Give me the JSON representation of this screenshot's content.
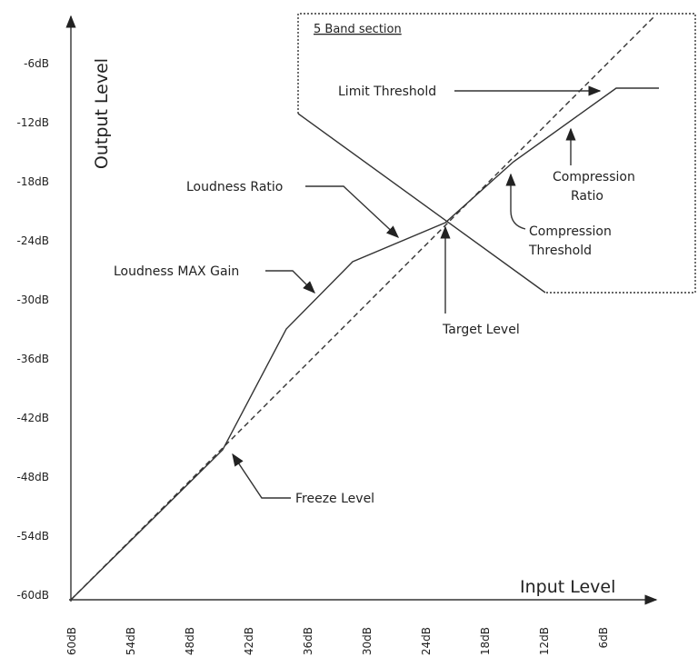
{
  "axes": {
    "y_label": "Output Level",
    "x_label": "Input Level",
    "y_ticks": [
      "-6dB",
      "-12dB",
      "-18dB",
      "-24dB",
      "-30dB",
      "-36dB",
      "-42dB",
      "-48dB",
      "-54dB",
      "-60dB"
    ],
    "x_ticks": [
      "60dB",
      "54dB",
      "48dB",
      "42dB",
      "36dB",
      "30dB",
      "24dB",
      "18dB",
      "12dB",
      "6dB"
    ]
  },
  "section": {
    "title": "5 Band section"
  },
  "annotations": {
    "limit_threshold": [
      "Limit Threshold"
    ],
    "compression_ratio": [
      "Compression",
      "Ratio"
    ],
    "compression_threshold": [
      "Compression",
      "Threshold"
    ],
    "target_level": [
      "Target Level"
    ],
    "loudness_ratio": [
      "Loudness Ratio"
    ],
    "loudness_max_gain": [
      "Loudness MAX Gain"
    ],
    "freeze_level": [
      "Freeze Level"
    ]
  }
}
